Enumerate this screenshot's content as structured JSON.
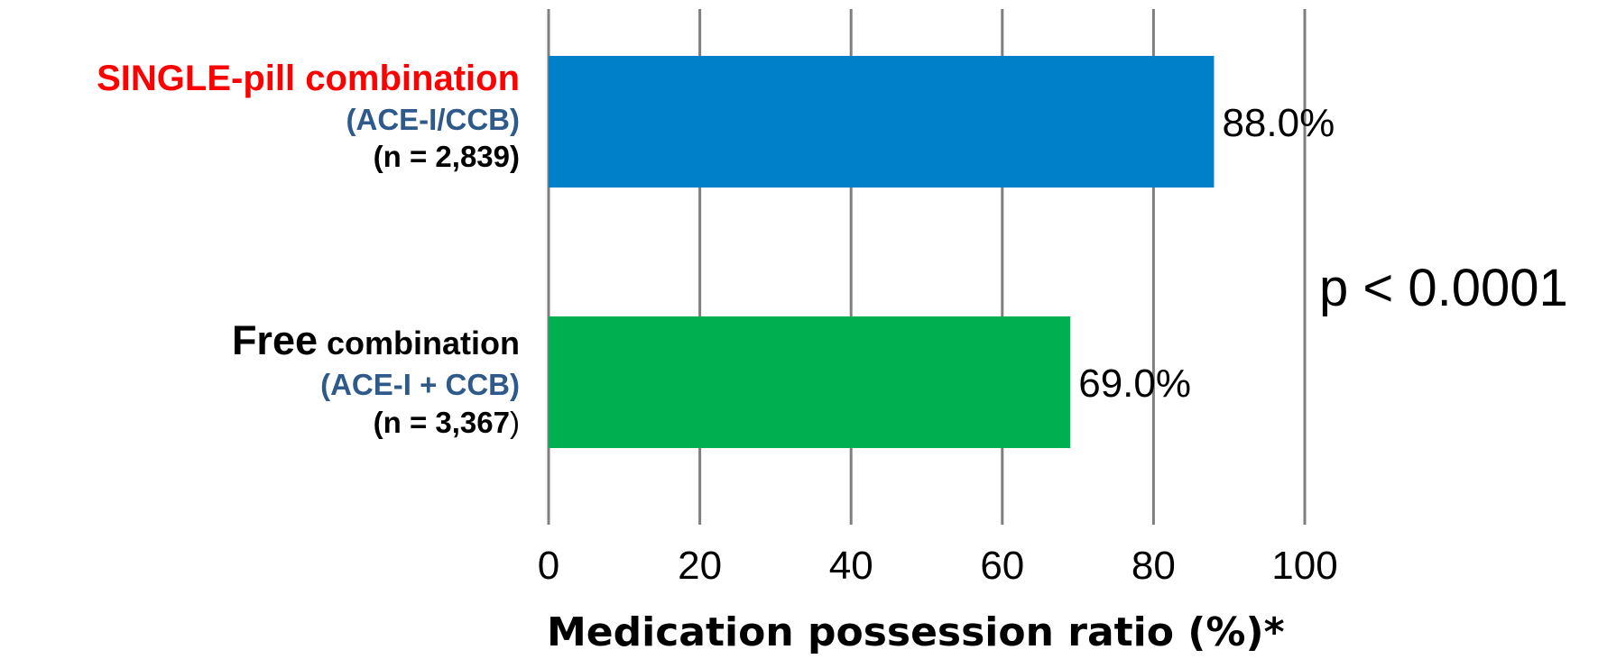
{
  "chart_data": {
    "type": "bar",
    "orientation": "horizontal",
    "categories": [
      {
        "parts": [
          {
            "text": "SINGLE-pill combination",
            "color": "#ff0000",
            "size": "l1"
          },
          {
            "text": "(ACE-I/CCB)",
            "color": "#2e5a8b",
            "size": "l2"
          },
          {
            "text": "(n = 2,839)",
            "color": "#000000",
            "size": "l3"
          }
        ]
      },
      {
        "parts": [
          {
            "text": "Free",
            "color": "#000000",
            "size": "big",
            "inline_with_next": true
          },
          {
            "text": " combination",
            "color": "#000000",
            "size": "small"
          },
          {
            "text": "(ACE-I + CCB)",
            "color": "#2e5a8b",
            "size": "l2"
          },
          {
            "text": "(n = 3,367",
            "color": "#000000",
            "size": "l3",
            "suffix": ")"
          }
        ]
      }
    ],
    "values": [
      88.0,
      69.0
    ],
    "data_labels": [
      "88.0%",
      "69.0%"
    ],
    "bar_colors": [
      "#0080c8",
      "#00b050"
    ],
    "xlim": [
      0,
      100
    ],
    "xticks": [
      0,
      20,
      40,
      60,
      80,
      100
    ],
    "tick_labels": [
      "0",
      "20",
      "40",
      "60",
      "80",
      "100"
    ],
    "grid": true,
    "xlabel": "Medication possession ratio (%)*",
    "annotation": "p < 0.0001"
  }
}
